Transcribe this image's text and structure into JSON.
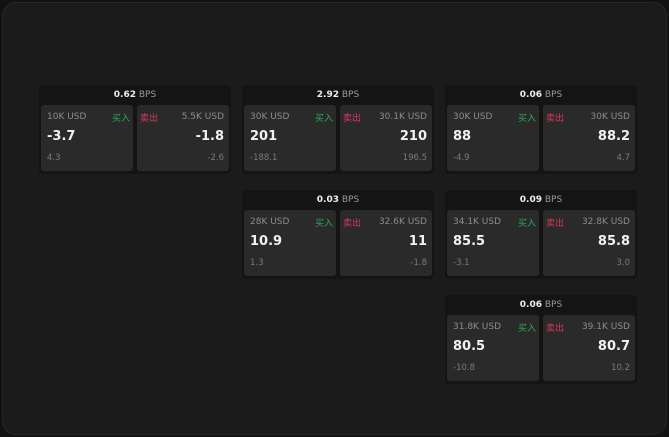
{
  "colors": {
    "buy": "#2fa85a",
    "sell": "#d9365c"
  },
  "labels": {
    "buy": "买入",
    "sell": "卖出",
    "unit": "BPS"
  },
  "tiles": [
    {
      "bps": "0.62",
      "buy": {
        "size": "10K USD",
        "price": "-3.7",
        "change": "4.3"
      },
      "sell": {
        "size": "5.5K USD",
        "price": "-1.8",
        "change": "-2.6"
      }
    },
    {
      "bps": "2.92",
      "buy": {
        "size": "30K USD",
        "price": "201",
        "change": "-188.1"
      },
      "sell": {
        "size": "30.1K USD",
        "price": "210",
        "change": "196.5"
      }
    },
    {
      "bps": "0.06",
      "buy": {
        "size": "30K USD",
        "price": "88",
        "change": "-4.9"
      },
      "sell": {
        "size": "30K USD",
        "price": "88.2",
        "change": "4.7"
      }
    },
    {
      "bps": "0.03",
      "buy": {
        "size": "28K USD",
        "price": "10.9",
        "change": "1.3"
      },
      "sell": {
        "size": "32.6K USD",
        "price": "11",
        "change": "-1.8"
      }
    },
    {
      "bps": "0.09",
      "buy": {
        "size": "34.1K USD",
        "price": "85.5",
        "change": "-3.1"
      },
      "sell": {
        "size": "32.8K USD",
        "price": "85.8",
        "change": "3.0"
      }
    },
    {
      "bps": "0.06",
      "buy": {
        "size": "31.8K USD",
        "price": "80.5",
        "change": "-10.8"
      },
      "sell": {
        "size": "39.1K USD",
        "price": "80.7",
        "change": "10.2"
      }
    }
  ]
}
